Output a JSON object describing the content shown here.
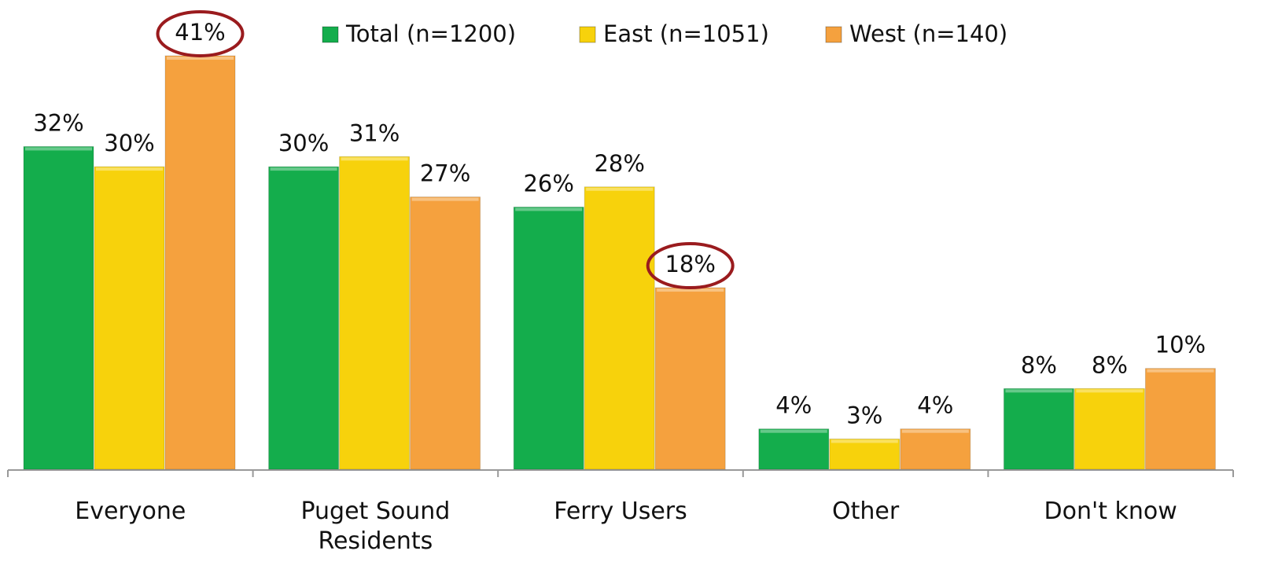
{
  "chart_data": {
    "type": "bar",
    "categories": [
      "Everyone",
      "Puget Sound Residents",
      "Ferry Users",
      "Other",
      "Don't know"
    ],
    "series": [
      {
        "name": "Total (n=1200)",
        "color": "#14ad4c",
        "values": [
          32,
          30,
          26,
          4,
          8
        ],
        "value_labels": [
          "32%",
          "30%",
          "26%",
          "4%",
          "8%"
        ]
      },
      {
        "name": "East (n=1051)",
        "color": "#f7d20c",
        "values": [
          30,
          31,
          28,
          3,
          8
        ],
        "value_labels": [
          "30%",
          "31%",
          "28%",
          "3%",
          "8%"
        ]
      },
      {
        "name": "West (n=140)",
        "color": "#f5a13e",
        "values": [
          41,
          27,
          18,
          4,
          10
        ],
        "value_labels": [
          "41%",
          "27%",
          "18%",
          "4%",
          "10%"
        ]
      }
    ],
    "legend": "top"
  }
}
